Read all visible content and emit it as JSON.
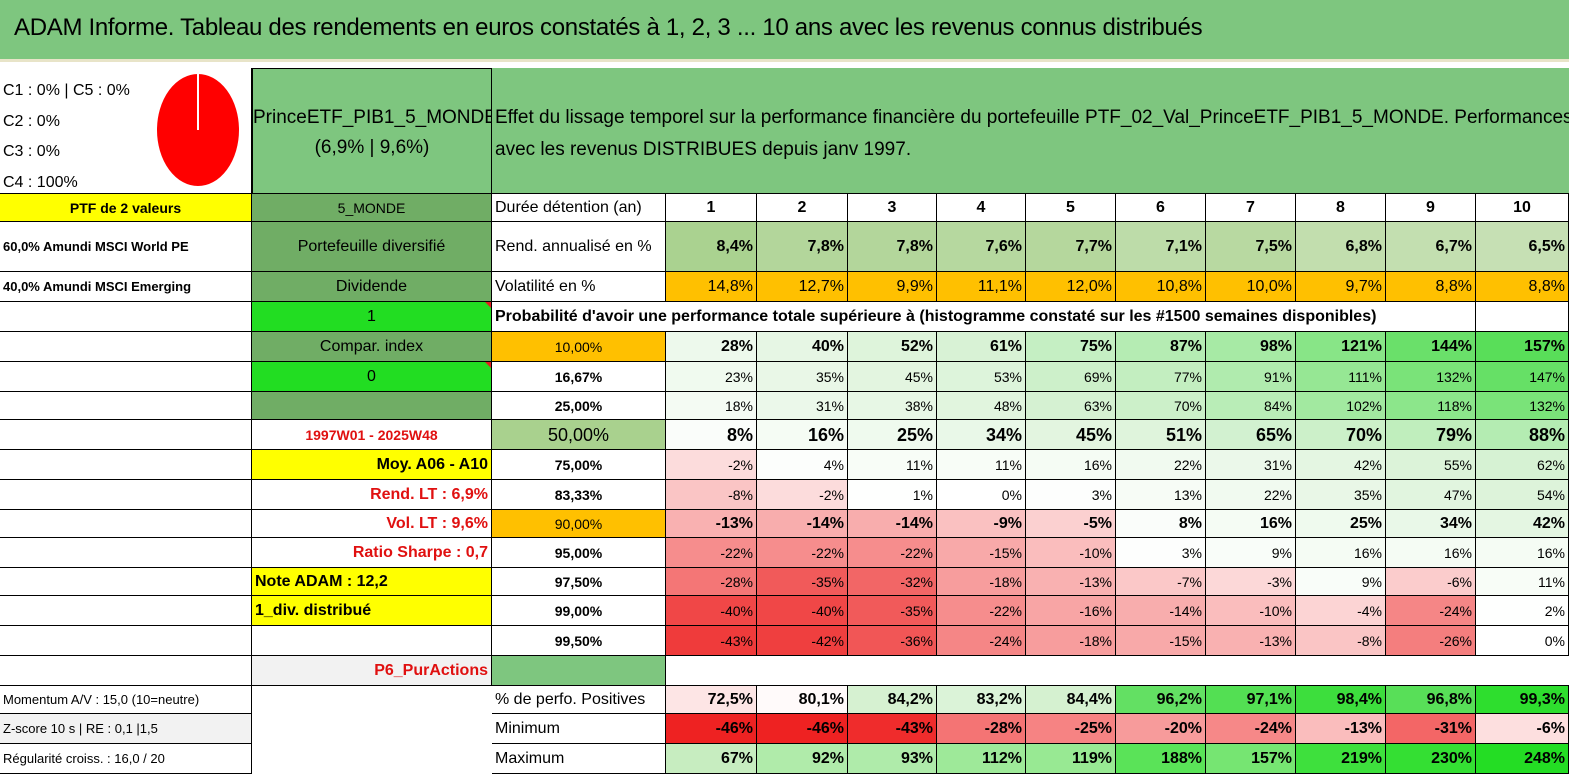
{
  "title": "ADAM Informe. Tableau des rendements en euros constatés à 1, 2, 3 ... 10 ans avec les revenus connus distribués",
  "allocation": {
    "lines": [
      "C1 : 0% | C5 : 0%",
      "C2 : 0%",
      "C3 : 0%",
      "C4 : 100%"
    ],
    "pie_color": "#ff0000"
  },
  "fund": {
    "name": "PrinceETF_PIB1_5_MONDE",
    "stats": "(6,9% | 9,6%)"
  },
  "description": {
    "line1": "Effet du lissage temporel sur la performance financière du portefeuille PTF_02_Val_PrinceETF_PIB1_5_MONDE. Performances",
    "line2": "avec les revenus DISTRIBUES depuis janv 1997."
  },
  "left": {
    "ptf": "PTF de 2 valeurs",
    "holding1": "60,0% Amundi MSCI World PE",
    "holding2": "40,0% Amundi MSCI Emerging",
    "momentum": "Momentum A/V : 15,0 (10=neutre)",
    "zscore": "Z-score 10 s | RE : 0,1 |1,5",
    "regularite": "Régularité croiss. : 16,0 / 20"
  },
  "mid": {
    "monde": "5_MONDE",
    "diversifie": "Portefeuille diversifié",
    "dividende": "Dividende",
    "one": "1",
    "compar": "Compar. index",
    "zero": "0",
    "period": "1997W01 - 2025W48",
    "moy": "Moy. A06 - A10",
    "rend_lt": "Rend. LT : 6,9%",
    "vol_lt": "Vol. LT : 9,6%",
    "sharpe": "Ratio Sharpe : 0,7",
    "note": "Note ADAM : 12,2",
    "div": "1_div. distribué",
    "p6": "P6_PurActions"
  },
  "table": {
    "duree_label": "Durée détention (an)",
    "years": [
      "1",
      "2",
      "3",
      "4",
      "5",
      "6",
      "7",
      "8",
      "9",
      "10"
    ],
    "rend_label": "Rend. annualisé en %",
    "rend": [
      "8,4%",
      "7,8%",
      "7,8%",
      "7,6%",
      "7,7%",
      "7,1%",
      "7,5%",
      "6,8%",
      "6,7%",
      "6,5%"
    ],
    "vol_label": "Volatilité en %",
    "vol": [
      "14,8%",
      "12,7%",
      "9,9%",
      "11,1%",
      "12,0%",
      "10,8%",
      "10,0%",
      "9,7%",
      "8,8%",
      "8,8%"
    ],
    "prob_label": "Probabilité d'avoir une performance totale supérieure à (histogramme constaté sur les #1500 semaines disponibles)",
    "quantiles": [
      {
        "q": "10,00%",
        "values": [
          "28%",
          "40%",
          "52%",
          "61%",
          "75%",
          "87%",
          "98%",
          "121%",
          "144%",
          "157%"
        ]
      },
      {
        "q": "16,67%",
        "values": [
          "23%",
          "35%",
          "45%",
          "53%",
          "69%",
          "77%",
          "91%",
          "111%",
          "132%",
          "147%"
        ]
      },
      {
        "q": "25,00%",
        "values": [
          "18%",
          "31%",
          "38%",
          "48%",
          "63%",
          "70%",
          "84%",
          "102%",
          "118%",
          "132%"
        ]
      },
      {
        "q": "50,00%",
        "values": [
          "8%",
          "16%",
          "25%",
          "34%",
          "45%",
          "51%",
          "65%",
          "70%",
          "79%",
          "88%"
        ]
      },
      {
        "q": "75,00%",
        "values": [
          "-2%",
          "4%",
          "11%",
          "11%",
          "16%",
          "22%",
          "31%",
          "42%",
          "55%",
          "62%"
        ]
      },
      {
        "q": "83,33%",
        "values": [
          "-8%",
          "-2%",
          "1%",
          "0%",
          "3%",
          "13%",
          "22%",
          "35%",
          "47%",
          "54%"
        ]
      },
      {
        "q": "90,00%",
        "values": [
          "-13%",
          "-14%",
          "-14%",
          "-9%",
          "-5%",
          "8%",
          "16%",
          "25%",
          "34%",
          "42%"
        ]
      },
      {
        "q": "95,00%",
        "values": [
          "-22%",
          "-22%",
          "-22%",
          "-15%",
          "-10%",
          "3%",
          "9%",
          "16%",
          "16%",
          "16%"
        ]
      },
      {
        "q": "97,50%",
        "values": [
          "-28%",
          "-35%",
          "-32%",
          "-18%",
          "-13%",
          "-7%",
          "-3%",
          "9%",
          "-6%",
          "11%"
        ]
      },
      {
        "q": "99,00%",
        "values": [
          "-40%",
          "-40%",
          "-35%",
          "-22%",
          "-16%",
          "-14%",
          "-10%",
          "-4%",
          "-24%",
          "2%"
        ]
      },
      {
        "q": "99,50%",
        "values": [
          "-43%",
          "-42%",
          "-36%",
          "-24%",
          "-18%",
          "-15%",
          "-13%",
          "-8%",
          "-26%",
          "0%"
        ]
      }
    ],
    "pos_label": "% de perfo. Positives",
    "pos": [
      "72,5%",
      "80,1%",
      "84,2%",
      "83,2%",
      "84,4%",
      "96,2%",
      "97,1%",
      "98,4%",
      "96,8%",
      "99,3%"
    ],
    "min_label": "Minimum",
    "min": [
      "-46%",
      "-46%",
      "-43%",
      "-28%",
      "-25%",
      "-20%",
      "-24%",
      "-13%",
      "-31%",
      "-6%"
    ],
    "max_label": "Maximum",
    "max": [
      "67%",
      "92%",
      "93%",
      "112%",
      "119%",
      "188%",
      "157%",
      "219%",
      "230%",
      "248%"
    ]
  }
}
